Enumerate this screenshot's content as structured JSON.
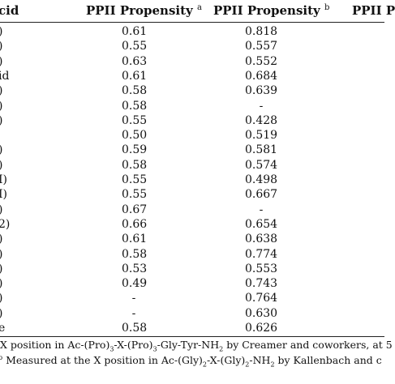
{
  "table": {
    "headers": {
      "col0": "cid",
      "col1": "PPII Propensity",
      "col1_mark": "a",
      "col2": "PPII Propensity",
      "col2_mark": "b",
      "col3": "PPII P"
    },
    "rows": [
      {
        "aa": ")",
        "a": "0.61",
        "b": "0.818"
      },
      {
        "aa": ")",
        "a": "0.55",
        "b": "0.557"
      },
      {
        "aa": ")",
        "a": "0.63",
        "b": "0.552"
      },
      {
        "aa": "id",
        "a": "0.61",
        "b": "0.684"
      },
      {
        "aa": ")",
        "a": "0.58",
        "b": "0.639"
      },
      {
        "aa": ")",
        "a": "0.58",
        "b": "-"
      },
      {
        "aa": ")",
        "a": "0.55",
        "b": "0.428"
      },
      {
        "aa": "",
        "a": "0.50",
        "b": "0.519"
      },
      {
        "aa": ")",
        "a": "0.59",
        "b": "0.581"
      },
      {
        "aa": ")",
        "a": "0.58",
        "b": "0.574"
      },
      {
        "aa": "I)",
        "a": "0.55",
        "b": "0.498"
      },
      {
        "aa": "I)",
        "a": "0.55",
        "b": "0.667"
      },
      {
        "aa": ")",
        "a": "0.67",
        "b": "-"
      },
      {
        "aa": "2)",
        "a": "0.66",
        "b": "0.654"
      },
      {
        "aa": ")",
        "a": "0.61",
        "b": "0.638"
      },
      {
        "aa": ")",
        "a": "0.58",
        "b": "0.774"
      },
      {
        "aa": ")",
        "a": "0.53",
        "b": "0.553"
      },
      {
        "aa": ")",
        "a": "0.49",
        "b": "0.743"
      },
      {
        "aa": ")",
        "a": "-",
        "b": "0.764"
      },
      {
        "aa": ")",
        "a": "-",
        "b": "0.630"
      },
      {
        "aa": "e",
        "a": "0.58",
        "b": "0.626"
      }
    ]
  },
  "footnotes": {
    "a_prefix": "X position in Ac-(Pro)",
    "a_sub1": "3",
    "a_mid": "-X-(Pro)",
    "a_sub2": "3",
    "a_suffix": "-Gly-Tyr-NH",
    "a_sub3": "2",
    "a_tail": " by Creamer and coworkers, at 5",
    "b_mark": "b",
    "b_prefix": " Measured at the X position in Ac-(Gly)",
    "b_sub1": "2",
    "b_mid": "-X-(Gly)",
    "b_sub2": "2",
    "b_suffix": "-NH",
    "b_sub3": "2",
    "b_tail": " by Kallenbach and c"
  }
}
